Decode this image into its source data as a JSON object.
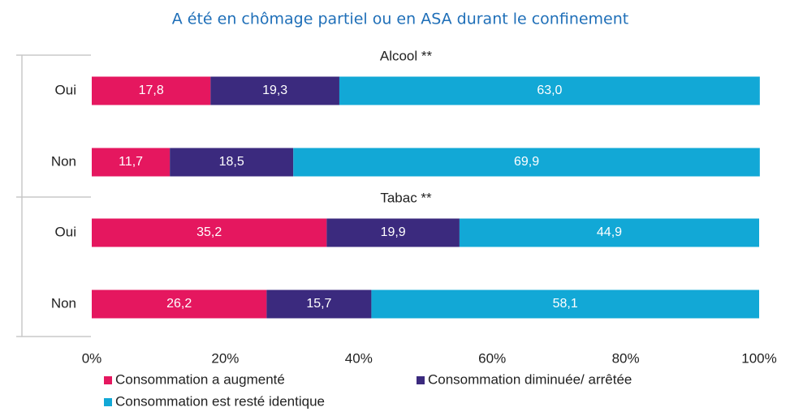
{
  "chart_data": {
    "type": "bar",
    "stacked": true,
    "orientation": "horizontal",
    "title": "A été en chômage partiel ou en ASA durant le confinement",
    "groups": [
      {
        "label": "Alcool **",
        "categories": [
          "Oui",
          "Non"
        ]
      },
      {
        "label": "Tabac **",
        "categories": [
          "Oui",
          "Non"
        ]
      }
    ],
    "series": [
      {
        "name": "Consommation a augmenté",
        "color": "#e5175f",
        "values": [
          [
            17.8,
            11.7
          ],
          [
            35.2,
            26.2
          ]
        ],
        "value_labels": [
          [
            "17,8",
            "11,7"
          ],
          [
            "35,2",
            "26,2"
          ]
        ]
      },
      {
        "name": "Consommation diminuée/ arrêtée",
        "color": "#3b2a7e",
        "values": [
          [
            19.3,
            18.5
          ],
          [
            19.9,
            15.7
          ]
        ],
        "value_labels": [
          [
            "19,3",
            "18,5"
          ],
          [
            "19,9",
            "15,7"
          ]
        ]
      },
      {
        "name": "Consommation est resté identique",
        "color": "#12a8d6",
        "values": [
          [
            63.0,
            69.9
          ],
          [
            44.9,
            58.1
          ]
        ],
        "value_labels": [
          [
            "63,0",
            "69,9"
          ],
          [
            "44,9",
            "58,1"
          ]
        ]
      }
    ],
    "xlim": [
      0,
      100
    ],
    "xticks": [
      {
        "value": 0,
        "label": "0%"
      },
      {
        "value": 20,
        "label": "20%"
      },
      {
        "value": 40,
        "label": "40%"
      },
      {
        "value": 60,
        "label": "60%"
      },
      {
        "value": 80,
        "label": "80%"
      },
      {
        "value": 100,
        "label": "100%"
      }
    ]
  }
}
